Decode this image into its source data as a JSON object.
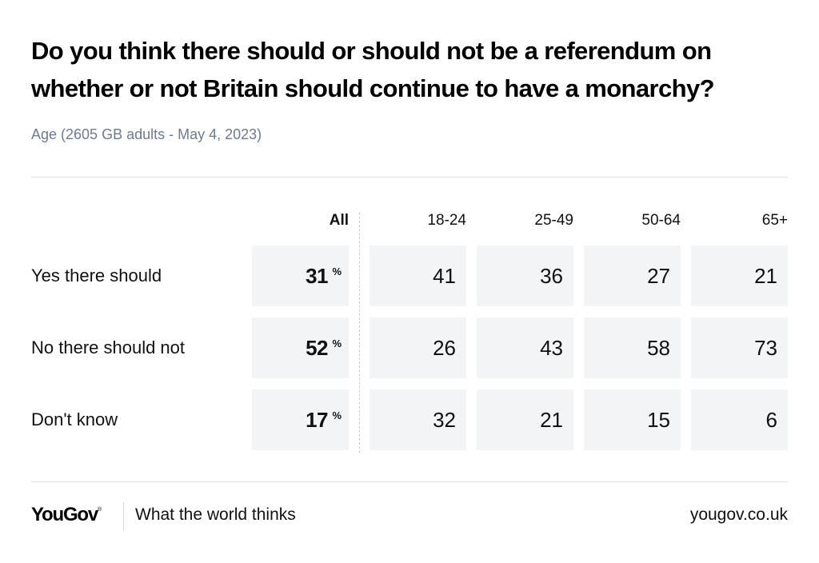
{
  "header": {
    "title": "Do you think there should or should not be a referendum on whether or not Britain should continue to have a monarchy?",
    "subtitle": "Age (2605 GB adults - May 4, 2023)"
  },
  "chart_data": {
    "type": "table",
    "title": "Do you think there should or should not be a referendum on whether or not Britain should continue to have a monarchy?",
    "subtitle": "Age (2605 GB adults - May 4, 2023)",
    "columns": [
      "All",
      "18-24",
      "25-49",
      "50-64",
      "65+"
    ],
    "unit_symbol": "%",
    "rows": [
      {
        "label": "Yes there should",
        "values": [
          31,
          41,
          36,
          27,
          21
        ]
      },
      {
        "label": "No there should not",
        "values": [
          52,
          26,
          43,
          58,
          73
        ]
      },
      {
        "label": "Don't know",
        "values": [
          17,
          32,
          21,
          15,
          6
        ]
      }
    ]
  },
  "footer": {
    "logo": "YouGov",
    "logo_mark": "®",
    "tagline": "What the world thinks",
    "site": "yougov.co.uk"
  },
  "colors": {
    "cell_background": "#f3f4f6",
    "subtitle": "#6b7a99",
    "rule": "#dfe1e5"
  }
}
